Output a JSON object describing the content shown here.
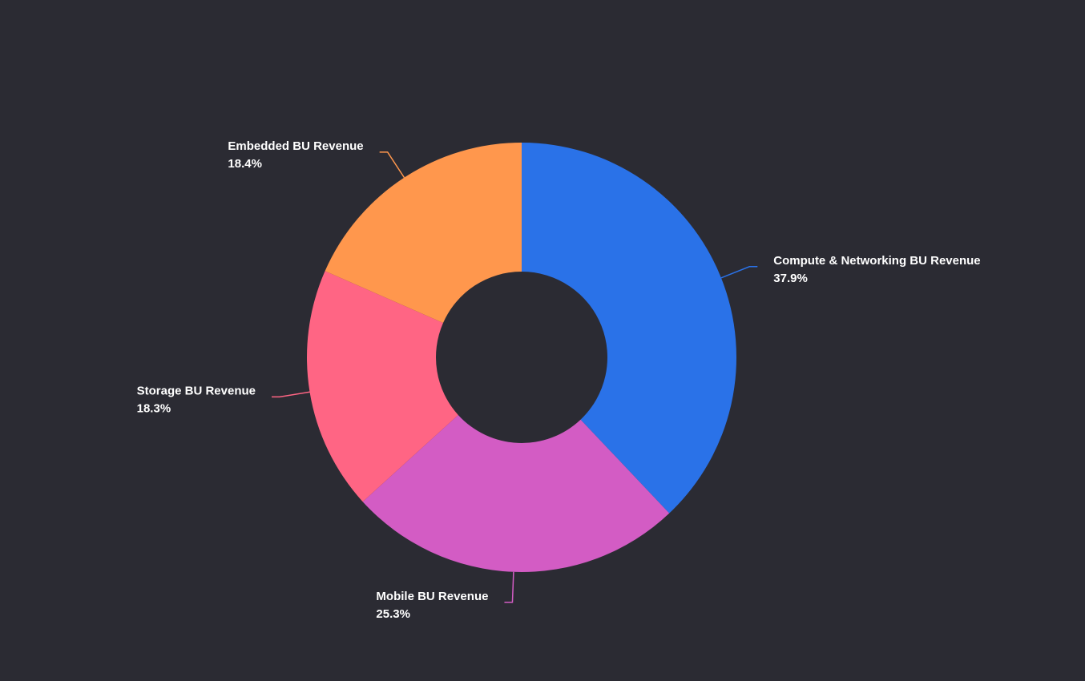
{
  "chart_data": {
    "type": "donut",
    "categories": [
      "Compute & Networking BU Revenue",
      "Mobile BU Revenue",
      "Storage BU Revenue",
      "Embedded BU Revenue"
    ],
    "values": [
      37.9,
      25.3,
      18.3,
      18.4
    ],
    "value_labels": [
      "37.9%",
      "25.3%",
      "18.3%",
      "18.4%"
    ],
    "colors": [
      "#2a72e8",
      "#d35cc4",
      "#ff6584",
      "#ff974d"
    ]
  }
}
